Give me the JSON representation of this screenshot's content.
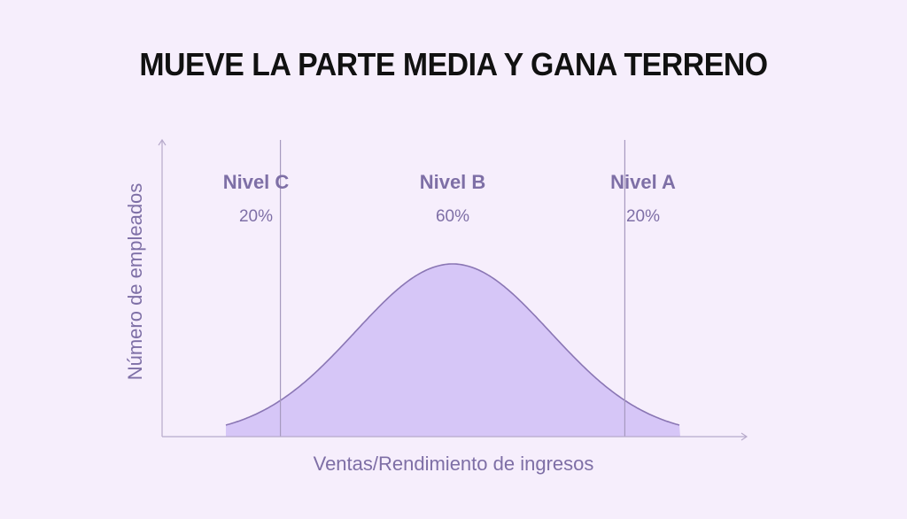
{
  "title": "MUEVE LA PARTE MEDIA Y GANA TERRENO",
  "colors": {
    "background": "#F6EEFC",
    "curve_fill": "#D6C6F7",
    "curve_stroke": "#8A76B4",
    "text": "#7E6FA6",
    "axis": "#B7AACB",
    "divider": "#A699BF",
    "title": "#111111"
  },
  "chart_data": {
    "type": "area",
    "title": "MUEVE LA PARTE MEDIA Y GANA TERRENO",
    "xlabel": "Ventas/Rendimiento de ingresos",
    "ylabel": "Número de empleados",
    "distribution": "normal",
    "ticks_shown": false,
    "grid": false,
    "tiers": [
      {
        "name": "Nivel C",
        "percent_label": "20%",
        "share": 0.2
      },
      {
        "name": "Nivel B",
        "percent_label": "60%",
        "share": 0.6
      },
      {
        "name": "Nivel A",
        "percent_label": "20%",
        "share": 0.2
      }
    ]
  }
}
